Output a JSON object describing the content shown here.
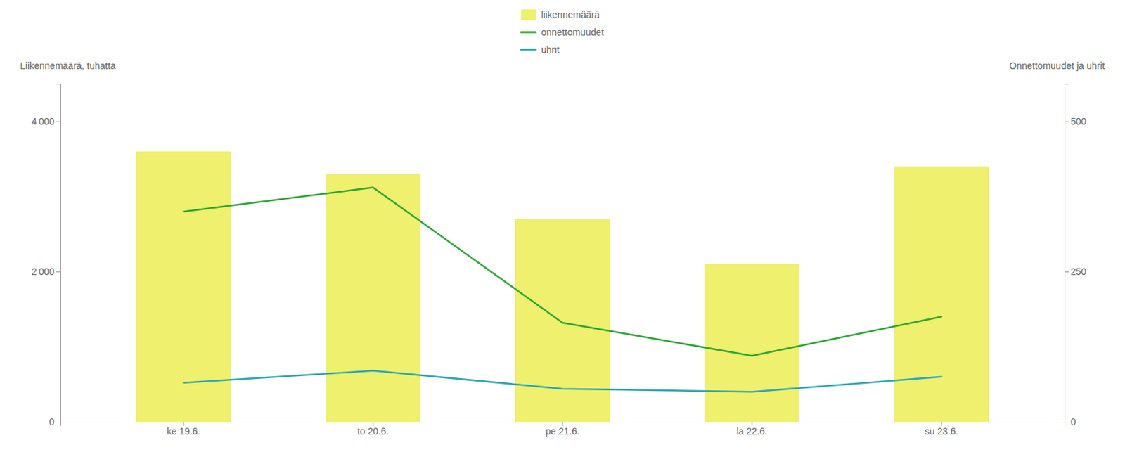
{
  "chart_data": {
    "type": "bar",
    "categories": [
      "ke 19.6.",
      "to 20.6.",
      "pe 21.6.",
      "la 22.6.",
      "su 23.6."
    ],
    "series": [
      {
        "name": "liikennemäärä",
        "type": "bar",
        "color": "#eef06e",
        "values": [
          3600,
          3300,
          2700,
          2100,
          3400
        ]
      },
      {
        "name": "onnettomuudet",
        "type": "line",
        "color": "#2aa832",
        "axis": "y2",
        "values": [
          350,
          390,
          165,
          110,
          175
        ]
      },
      {
        "name": "uhrit",
        "type": "line",
        "color": "#29a8b8",
        "axis": "y2",
        "values": [
          65,
          85,
          55,
          50,
          75
        ]
      }
    ],
    "ylabel": "Liikennemäärä, tuhatta",
    "y2label": "Onnettomuudet ja uhrit",
    "ylim": [
      0,
      4500
    ],
    "yticks": [
      0,
      {
        "value": 2000,
        "label": "2 000"
      },
      {
        "value": 4000,
        "label": "4 000"
      }
    ],
    "y2lim": [
      0,
      562.5
    ],
    "y2ticks": [
      0,
      250,
      500
    ],
    "grid": false,
    "legend": "top"
  }
}
